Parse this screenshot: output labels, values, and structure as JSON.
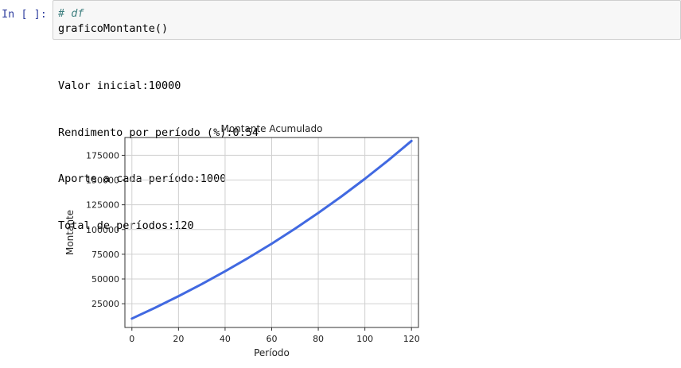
{
  "cell": {
    "prompt": "In [ ]:",
    "code_comment": "# df",
    "code_line": "graficoMontante()"
  },
  "output": {
    "lines": [
      "Valor inicial:10000",
      "Rendimento por período (%):0.54",
      "Aporte a cada período:1000",
      "Total de períodos:120"
    ]
  },
  "chart_data": {
    "type": "line",
    "title": "Montante Acumulado",
    "xlabel": "Período",
    "ylabel": "Montante",
    "xlim": [
      -3,
      123
    ],
    "ylim": [
      1000,
      193000
    ],
    "xticks": [
      0,
      20,
      40,
      60,
      80,
      100,
      120
    ],
    "yticks": [
      25000,
      50000,
      75000,
      100000,
      125000,
      150000,
      175000
    ],
    "grid": true,
    "line_color": "#4169e1",
    "series": [
      {
        "x": [
          0,
          10,
          20,
          30,
          40,
          50,
          60,
          70,
          80,
          90,
          100,
          110,
          120
        ],
        "values": [
          10000,
          21016,
          32627,
          44867,
          57769,
          71369,
          85704,
          100815,
          116744,
          133534,
          151232,
          169888,
          189553
        ]
      }
    ]
  }
}
